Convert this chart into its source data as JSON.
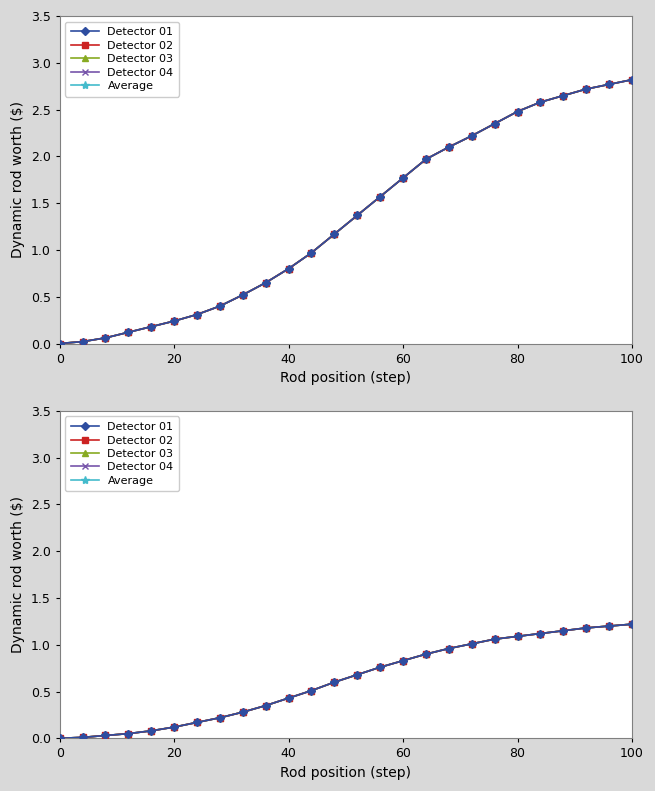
{
  "subplot1": {
    "ylabel": "Dynamic rod worth ($)",
    "xlabel": "Rod position (step)",
    "xlim": [
      0,
      100
    ],
    "ylim": [
      0.0,
      3.5
    ],
    "yticks": [
      0.0,
      0.5,
      1.0,
      1.5,
      2.0,
      2.5,
      3.0,
      3.5
    ],
    "xticks": [
      0,
      20,
      40,
      60,
      80,
      100
    ],
    "x": [
      0,
      4,
      8,
      12,
      16,
      20,
      24,
      28,
      32,
      36,
      40,
      44,
      48,
      52,
      56,
      60,
      64,
      68,
      72,
      76,
      80,
      84,
      88,
      92,
      96,
      100
    ],
    "series": {
      "Detector 01": [
        0.0,
        0.02,
        0.06,
        0.12,
        0.18,
        0.24,
        0.31,
        0.4,
        0.52,
        0.65,
        0.8,
        0.97,
        1.17,
        1.37,
        1.57,
        1.77,
        1.97,
        2.1,
        2.22,
        2.35,
        2.48,
        2.58,
        2.65,
        2.72,
        2.77,
        2.82
      ],
      "Detector 02": [
        0.0,
        0.02,
        0.06,
        0.12,
        0.18,
        0.24,
        0.31,
        0.4,
        0.52,
        0.65,
        0.8,
        0.97,
        1.17,
        1.37,
        1.57,
        1.77,
        1.97,
        2.1,
        2.22,
        2.35,
        2.48,
        2.58,
        2.65,
        2.72,
        2.77,
        2.82
      ],
      "Detector 03": [
        0.0,
        0.02,
        0.06,
        0.12,
        0.18,
        0.24,
        0.31,
        0.4,
        0.52,
        0.65,
        0.8,
        0.97,
        1.17,
        1.37,
        1.57,
        1.77,
        1.97,
        2.1,
        2.22,
        2.35,
        2.48,
        2.58,
        2.65,
        2.72,
        2.77,
        2.82
      ],
      "Detector 04": [
        0.0,
        0.02,
        0.06,
        0.12,
        0.18,
        0.24,
        0.31,
        0.4,
        0.52,
        0.65,
        0.8,
        0.97,
        1.17,
        1.37,
        1.57,
        1.77,
        1.97,
        2.1,
        2.22,
        2.35,
        2.48,
        2.58,
        2.65,
        2.72,
        2.77,
        2.82
      ],
      "Average": [
        0.0,
        0.02,
        0.06,
        0.12,
        0.18,
        0.24,
        0.31,
        0.4,
        0.52,
        0.65,
        0.8,
        0.97,
        1.17,
        1.37,
        1.57,
        1.77,
        1.97,
        2.1,
        2.22,
        2.35,
        2.48,
        2.58,
        2.65,
        2.72,
        2.77,
        2.82
      ]
    }
  },
  "subplot2": {
    "ylabel": "Dynamic rod worth ($)",
    "xlabel": "Rod position (step)",
    "xlim": [
      0,
      100
    ],
    "ylim": [
      0.0,
      3.5
    ],
    "yticks": [
      0.0,
      0.5,
      1.0,
      1.5,
      2.0,
      2.5,
      3.0,
      3.5
    ],
    "xticks": [
      0,
      20,
      40,
      60,
      80,
      100
    ],
    "x": [
      0,
      4,
      8,
      12,
      16,
      20,
      24,
      28,
      32,
      36,
      40,
      44,
      48,
      52,
      56,
      60,
      64,
      68,
      72,
      76,
      80,
      84,
      88,
      92,
      96,
      100
    ],
    "series": {
      "Detector 01": [
        0.0,
        0.01,
        0.03,
        0.05,
        0.08,
        0.12,
        0.17,
        0.22,
        0.28,
        0.35,
        0.43,
        0.51,
        0.6,
        0.68,
        0.76,
        0.83,
        0.9,
        0.96,
        1.01,
        1.06,
        1.09,
        1.12,
        1.15,
        1.18,
        1.2,
        1.22
      ],
      "Detector 02": [
        0.0,
        0.01,
        0.03,
        0.05,
        0.08,
        0.12,
        0.17,
        0.22,
        0.28,
        0.35,
        0.43,
        0.51,
        0.6,
        0.68,
        0.76,
        0.83,
        0.9,
        0.96,
        1.01,
        1.06,
        1.09,
        1.12,
        1.15,
        1.18,
        1.2,
        1.22
      ],
      "Detector 03": [
        0.0,
        0.01,
        0.03,
        0.05,
        0.08,
        0.12,
        0.17,
        0.22,
        0.28,
        0.35,
        0.43,
        0.51,
        0.6,
        0.68,
        0.76,
        0.83,
        0.9,
        0.96,
        1.01,
        1.06,
        1.09,
        1.12,
        1.15,
        1.18,
        1.2,
        1.22
      ],
      "Detector 04": [
        0.0,
        0.01,
        0.03,
        0.05,
        0.08,
        0.12,
        0.17,
        0.22,
        0.28,
        0.35,
        0.43,
        0.51,
        0.6,
        0.68,
        0.76,
        0.83,
        0.9,
        0.96,
        1.01,
        1.06,
        1.09,
        1.12,
        1.15,
        1.18,
        1.2,
        1.22
      ],
      "Average": [
        0.0,
        0.01,
        0.03,
        0.05,
        0.08,
        0.12,
        0.17,
        0.22,
        0.28,
        0.35,
        0.43,
        0.51,
        0.6,
        0.68,
        0.76,
        0.83,
        0.9,
        0.96,
        1.01,
        1.06,
        1.09,
        1.12,
        1.15,
        1.18,
        1.2,
        1.22
      ]
    }
  },
  "series_styles": {
    "Detector 01": {
      "color": "#2E4DA0",
      "marker": "D",
      "markersize": 4,
      "linewidth": 1.2,
      "zorder": 5
    },
    "Detector 02": {
      "color": "#CC2222",
      "marker": "s",
      "markersize": 4,
      "linewidth": 1.2,
      "zorder": 4
    },
    "Detector 03": {
      "color": "#88AA22",
      "marker": "^",
      "markersize": 4,
      "linewidth": 1.2,
      "zorder": 3
    },
    "Detector 04": {
      "color": "#7755AA",
      "marker": "x",
      "markersize": 4,
      "linewidth": 1.2,
      "zorder": 2
    },
    "Average": {
      "color": "#44BBCC",
      "marker": "*",
      "markersize": 6,
      "linewidth": 1.2,
      "zorder": 1
    }
  },
  "series_order": [
    "Detector 01",
    "Detector 02",
    "Detector 03",
    "Detector 04",
    "Average"
  ],
  "outer_bg_color": "#d9d9d9",
  "plot_bg_color": "#ffffff",
  "legend_fontsize": 8,
  "axis_label_fontsize": 10,
  "tick_fontsize": 9,
  "spine_color": "#808080"
}
